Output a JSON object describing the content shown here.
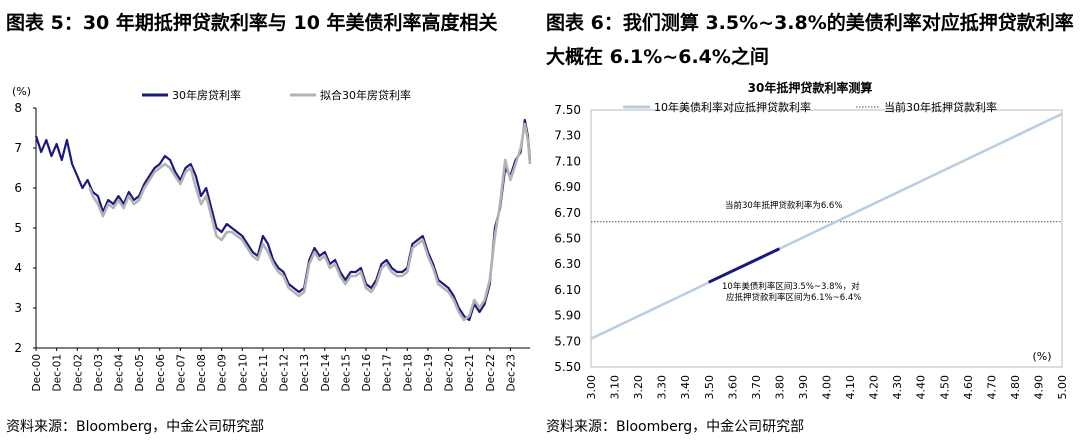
{
  "left": {
    "title": "图表 5：30 年期抵押贷款利率与 10 年美债利率高度相关",
    "source": "资料来源：Bloomberg，中金公司研究部"
  },
  "right": {
    "title": "图表 6：我们测算 3.5%~3.8%的美债利率对应抵押贷款利率大概在 6.1%~6.4%之间",
    "source": "资料来源：Bloomberg，中金公司研究部"
  },
  "colors": {
    "actual": "#1a1a7e",
    "fitted": "#b3b3b3",
    "fitline": "#b8cde3",
    "highlight": "#1a1a7e",
    "current": "#555555"
  },
  "chart_data": [
    {
      "type": "line",
      "title": "",
      "unit_label": "(%)",
      "ylim": [
        2,
        8
      ],
      "yticks": [
        2,
        3,
        4,
        5,
        6,
        7,
        8
      ],
      "xlim": [
        2000.0,
        2023.95
      ],
      "x_tick_labels": [
        "Dec-00",
        "Dec-01",
        "Dec-02",
        "Dec-03",
        "Dec-04",
        "Dec-05",
        "Dec-06",
        "Dec-07",
        "Dec-08",
        "Dec-09",
        "Dec-10",
        "Dec-11",
        "Dec-12",
        "Dec-13",
        "Dec-14",
        "Dec-15",
        "Dec-16",
        "Dec-17",
        "Dec-18",
        "Dec-19",
        "Dec-20",
        "Dec-21",
        "Dec-22",
        "Dec-23"
      ],
      "legend": [
        "30年房贷利率",
        "拟合30年房贷利率"
      ],
      "legend_position": "top",
      "grid": false,
      "series": [
        {
          "name": "30年房贷利率",
          "x": [
            2000.0,
            2000.25,
            2000.5,
            2000.75,
            2001.0,
            2001.25,
            2001.5,
            2001.75,
            2002.0,
            2002.25,
            2002.5,
            2002.75,
            2003.0,
            2003.25,
            2003.5,
            2003.75,
            2004.0,
            2004.25,
            2004.5,
            2004.75,
            2005.0,
            2005.25,
            2005.5,
            2005.75,
            2006.0,
            2006.25,
            2006.5,
            2006.75,
            2007.0,
            2007.25,
            2007.5,
            2007.75,
            2008.0,
            2008.25,
            2008.5,
            2008.75,
            2009.0,
            2009.25,
            2009.5,
            2009.75,
            2010.0,
            2010.25,
            2010.5,
            2010.75,
            2011.0,
            2011.25,
            2011.5,
            2011.75,
            2012.0,
            2012.25,
            2012.5,
            2012.75,
            2013.0,
            2013.25,
            2013.5,
            2013.75,
            2014.0,
            2014.25,
            2014.5,
            2014.75,
            2015.0,
            2015.25,
            2015.5,
            2015.75,
            2016.0,
            2016.25,
            2016.5,
            2016.75,
            2017.0,
            2017.25,
            2017.5,
            2017.75,
            2018.0,
            2018.25,
            2018.5,
            2018.75,
            2019.0,
            2019.25,
            2019.5,
            2019.75,
            2020.0,
            2020.25,
            2020.5,
            2020.75,
            2021.0,
            2021.25,
            2021.5,
            2021.75,
            2022.0,
            2022.25,
            2022.5,
            2022.75,
            2023.0,
            2023.25,
            2023.5,
            2023.7,
            2023.85,
            2023.95
          ],
          "values": [
            7.3,
            6.9,
            7.2,
            6.8,
            7.1,
            6.7,
            7.2,
            6.6,
            6.3,
            6.0,
            6.2,
            5.9,
            5.8,
            5.4,
            5.7,
            5.6,
            5.8,
            5.6,
            5.9,
            5.7,
            5.8,
            6.1,
            6.3,
            6.5,
            6.6,
            6.8,
            6.7,
            6.4,
            6.2,
            6.5,
            6.6,
            6.3,
            5.8,
            6.0,
            5.5,
            5.0,
            4.9,
            5.1,
            5.0,
            4.9,
            4.8,
            4.6,
            4.4,
            4.3,
            4.8,
            4.6,
            4.2,
            4.0,
            3.9,
            3.6,
            3.5,
            3.4,
            3.5,
            4.2,
            4.5,
            4.3,
            4.4,
            4.1,
            4.2,
            3.9,
            3.7,
            3.9,
            3.9,
            4.0,
            3.6,
            3.5,
            3.7,
            4.1,
            4.2,
            4.0,
            3.9,
            3.9,
            4.0,
            4.6,
            4.7,
            4.8,
            4.4,
            4.1,
            3.7,
            3.6,
            3.5,
            3.3,
            3.0,
            2.8,
            2.7,
            3.1,
            2.9,
            3.1,
            3.6,
            5.0,
            5.5,
            6.5,
            6.3,
            6.7,
            6.9,
            7.7,
            7.3,
            6.7
          ]
        },
        {
          "name": "拟合30年房贷利率",
          "x": [
            2002.6,
            2002.75,
            2003.0,
            2003.25,
            2003.5,
            2003.75,
            2004.0,
            2004.25,
            2004.5,
            2004.75,
            2005.0,
            2005.25,
            2005.5,
            2005.75,
            2006.0,
            2006.25,
            2006.5,
            2006.75,
            2007.0,
            2007.25,
            2007.5,
            2007.75,
            2008.0,
            2008.25,
            2008.5,
            2008.75,
            2009.0,
            2009.25,
            2009.5,
            2009.75,
            2010.0,
            2010.25,
            2010.5,
            2010.75,
            2011.0,
            2011.25,
            2011.5,
            2011.75,
            2012.0,
            2012.25,
            2012.5,
            2012.75,
            2013.0,
            2013.25,
            2013.5,
            2013.75,
            2014.0,
            2014.25,
            2014.5,
            2014.75,
            2015.0,
            2015.25,
            2015.5,
            2015.75,
            2016.0,
            2016.25,
            2016.5,
            2016.75,
            2017.0,
            2017.25,
            2017.5,
            2017.75,
            2018.0,
            2018.25,
            2018.5,
            2018.75,
            2019.0,
            2019.25,
            2019.5,
            2019.75,
            2020.0,
            2020.25,
            2020.5,
            2020.75,
            2021.0,
            2021.25,
            2021.5,
            2021.75,
            2022.0,
            2022.25,
            2022.5,
            2022.75,
            2023.0,
            2023.25,
            2023.5,
            2023.7,
            2023.85,
            2023.95
          ],
          "values": [
            6.0,
            5.8,
            5.6,
            5.3,
            5.6,
            5.5,
            5.7,
            5.5,
            5.8,
            5.6,
            5.7,
            6.0,
            6.2,
            6.4,
            6.5,
            6.6,
            6.5,
            6.3,
            6.1,
            6.4,
            6.5,
            6.0,
            5.6,
            5.8,
            5.3,
            4.8,
            4.7,
            4.9,
            4.9,
            4.8,
            4.7,
            4.5,
            4.3,
            4.2,
            4.6,
            4.4,
            4.1,
            3.9,
            3.8,
            3.5,
            3.4,
            3.3,
            3.4,
            4.1,
            4.4,
            4.2,
            4.3,
            4.0,
            4.1,
            3.8,
            3.6,
            3.8,
            3.8,
            3.9,
            3.5,
            3.4,
            3.6,
            4.0,
            4.1,
            3.9,
            3.8,
            3.8,
            3.9,
            4.5,
            4.6,
            4.7,
            4.3,
            4.0,
            3.6,
            3.5,
            3.4,
            3.2,
            2.9,
            2.7,
            2.8,
            3.2,
            3.0,
            3.2,
            3.7,
            4.8,
            5.6,
            6.7,
            6.2,
            6.6,
            7.0,
            7.6,
            7.2,
            6.6
          ]
        }
      ]
    },
    {
      "type": "line",
      "title": "30年抵押贷款利率测算",
      "unit_label": "(%)",
      "ylim": [
        5.5,
        7.5
      ],
      "yticks": [
        5.5,
        5.7,
        5.9,
        6.1,
        6.3,
        6.5,
        6.7,
        6.9,
        7.1,
        7.3,
        7.5
      ],
      "xlim": [
        3.0,
        5.0
      ],
      "xticks": [
        3.0,
        3.1,
        3.2,
        3.3,
        3.4,
        3.5,
        3.6,
        3.7,
        3.8,
        3.9,
        4.0,
        4.1,
        4.2,
        4.3,
        4.4,
        4.5,
        4.6,
        4.7,
        4.8,
        4.9,
        5.0
      ],
      "legend": [
        "10年美债利率对应抵押贷款利率",
        "当前30年抵押贷款利率"
      ],
      "legend_position": "top",
      "grid": false,
      "series": [
        {
          "name": "10年美债利率对应抵押贷款利率",
          "x": [
            3.0,
            5.0
          ],
          "values": [
            5.72,
            7.47
          ]
        },
        {
          "name": "当前30年抵押贷款利率",
          "x": [
            3.0,
            5.0
          ],
          "values": [
            6.63,
            6.63
          ]
        },
        {
          "name": "",
          "x": [
            3.5,
            3.8
          ],
          "values": [
            6.16,
            6.42
          ]
        }
      ],
      "annotations": [
        {
          "text": "当前30年抵押贷款利率为6.6%"
        },
        {
          "text": "10年美债利率区间3.5%~3.8%，对"
        },
        {
          "text": "应抵押贷款利率区间为6.1%~6.4%"
        }
      ]
    }
  ]
}
